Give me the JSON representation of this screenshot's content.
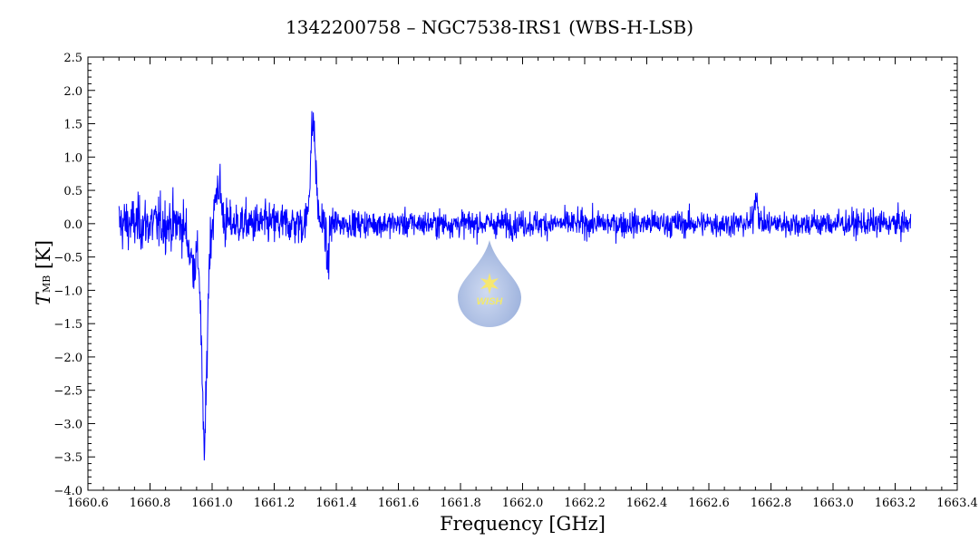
{
  "chart_data": {
    "type": "line",
    "title": "1342200758 – NGC7538-IRS1 (WBS-H-LSB)",
    "xlabel": "Frequency [GHz]",
    "ylabel_main": "T",
    "ylabel_sub": "MB",
    "ylabel_unit": " [K]",
    "xlim": [
      1660.6,
      1663.4
    ],
    "ylim": [
      -4.0,
      2.5
    ],
    "x_ticks": [
      "1660.6",
      "1660.8",
      "1661.0",
      "1661.2",
      "1661.4",
      "1661.6",
      "1661.8",
      "1662.0",
      "1662.2",
      "1662.4",
      "1662.6",
      "1662.8",
      "1663.0",
      "1663.2",
      "1663.4"
    ],
    "y_ticks": [
      "2.5",
      "2.0",
      "1.5",
      "1.0",
      "0.5",
      "0.0",
      "−0.5",
      "−1.0",
      "−1.5",
      "−2.0",
      "−2.5",
      "−3.0",
      "−3.5",
      "−4.0"
    ],
    "grid": false,
    "line_color": "#0000ff",
    "series": [
      {
        "x_start": 1660.7,
        "x_end": 1663.25,
        "baseline_noise_rms": 0.2,
        "features": [
          {
            "x": 1660.97,
            "y": -3.8
          },
          {
            "x": 1660.99,
            "y": -3.5
          },
          {
            "x": 1660.95,
            "y": -0.8
          },
          {
            "x": 1661.02,
            "y": 1.35
          },
          {
            "x": 1661.31,
            "y": 1.2
          },
          {
            "x": 1661.32,
            "y": 1.95
          },
          {
            "x": 1661.34,
            "y": 1.4
          },
          {
            "x": 1661.37,
            "y": -1.0
          },
          {
            "x": 1662.75,
            "y": 0.7
          }
        ]
      }
    ]
  },
  "watermark": {
    "text": "WISH"
  }
}
